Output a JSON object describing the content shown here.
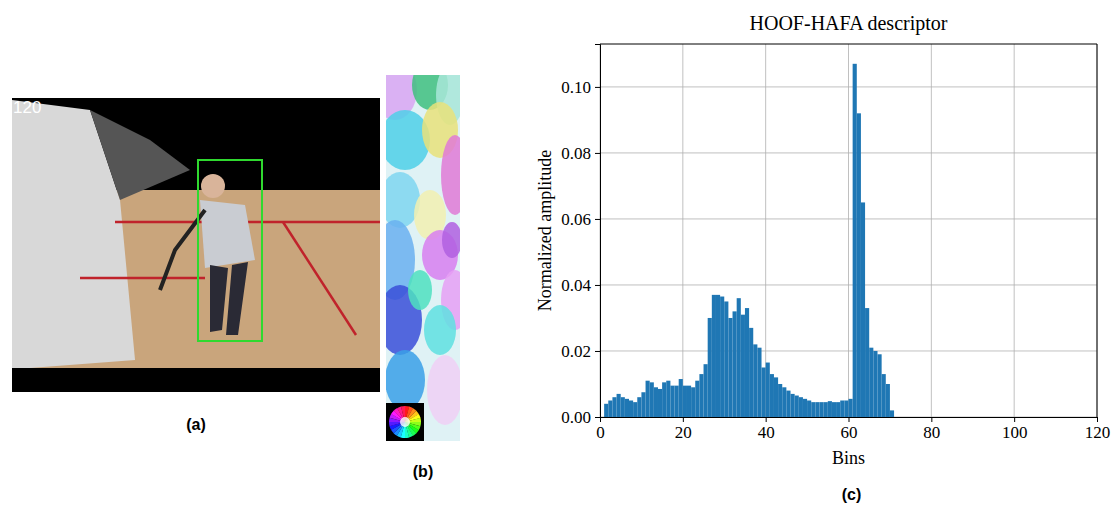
{
  "chart_data": {
    "type": "histogram",
    "title": "HOOF-HAFA descriptor",
    "x_label": "Bins",
    "y_label": "Normalized amplitude",
    "bins": [
      0,
      1,
      2,
      3,
      4,
      5,
      6,
      7,
      8,
      9,
      10,
      11,
      12,
      13,
      14,
      15,
      16,
      17,
      18,
      19,
      20,
      21,
      22,
      23,
      24,
      25,
      26,
      27,
      28,
      29,
      30,
      31,
      32,
      33,
      34,
      35,
      36,
      37,
      38,
      39,
      40,
      41,
      42,
      43,
      44,
      45,
      46,
      47,
      48,
      49,
      50,
      51,
      52,
      53,
      54,
      55,
      56,
      57,
      58,
      59,
      60,
      61,
      62,
      63,
      64,
      65,
      66,
      67,
      68,
      69,
      70,
      71,
      72,
      73,
      74,
      75,
      76,
      77,
      78,
      79,
      80,
      81,
      82,
      83,
      84,
      85,
      86,
      87,
      88,
      89,
      90,
      91,
      92,
      93,
      94,
      95,
      96,
      97,
      98,
      99,
      100,
      101,
      102,
      103,
      104,
      105,
      106,
      107,
      108,
      109,
      110,
      111,
      112,
      113,
      114,
      115,
      116,
      117,
      118,
      119,
      120
    ],
    "values": [
      0,
      0.004,
      0.005,
      0.006,
      0.007,
      0.006,
      0.0055,
      0.005,
      0.0045,
      0.006,
      0.0075,
      0.011,
      0.0105,
      0.009,
      0.0085,
      0.0105,
      0.011,
      0.0095,
      0.0095,
      0.0115,
      0.0095,
      0.0095,
      0.009,
      0.011,
      0.013,
      0.016,
      0.03,
      0.037,
      0.037,
      0.0365,
      0.035,
      0.03,
      0.032,
      0.036,
      0.031,
      0.033,
      0.027,
      0.022,
      0.021,
      0.015,
      0.0165,
      0.013,
      0.012,
      0.01,
      0.009,
      0.008,
      0.007,
      0.0065,
      0.006,
      0.0055,
      0.005,
      0.0045,
      0.0045,
      0.0045,
      0.0045,
      0.0048,
      0.0045,
      0.0045,
      0.005,
      0.005,
      0.0055,
      0.107,
      0.092,
      0.065,
      0.033,
      0.021,
      0.02,
      0.019,
      0.013,
      0.01,
      0.002,
      0,
      0,
      0,
      0,
      0,
      0,
      0,
      0,
      0,
      0,
      0,
      0,
      0,
      0,
      0,
      0,
      0,
      0,
      0,
      0,
      0,
      0,
      0,
      0,
      0,
      0,
      0,
      0,
      0,
      0,
      0,
      0,
      0,
      0,
      0,
      0,
      0,
      0,
      0,
      0,
      0,
      0,
      0,
      0,
      0,
      0,
      0,
      0,
      0
    ],
    "color": "#1f77b4",
    "xlim": [
      0,
      120
    ],
    "xticks": [
      0,
      20,
      40,
      60,
      80,
      100,
      120
    ],
    "ylim": [
      0,
      0.113
    ],
    "yticks": [
      {
        "value": 0,
        "label": "0.00"
      },
      {
        "value": 0.02,
        "label": "0.02"
      },
      {
        "value": 0.04,
        "label": "0.04"
      },
      {
        "value": 0.06,
        "label": "0.06"
      },
      {
        "value": 0.08,
        "label": "0.08"
      },
      {
        "value": 0.1,
        "label": "0.10"
      }
    ],
    "grid": true
  },
  "figure": {
    "frame_number": "120",
    "panel_labels": [
      "(a)",
      "(b)",
      "(c)"
    ]
  }
}
